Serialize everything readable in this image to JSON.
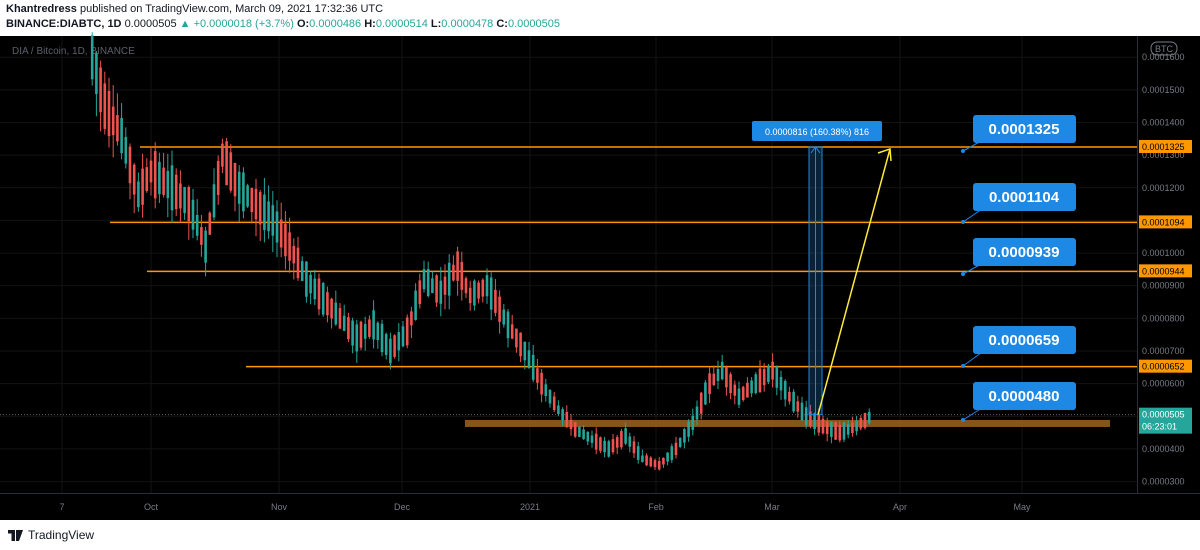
{
  "header": {
    "author": "Khantredress",
    "published_text": "published on TradingView.com, March 09, 2021 17:32:36 UTC",
    "symbol": "BINANCE:DIABTC, 1D",
    "last": "0.0000505",
    "change": "▲ +0.0000018 (+3.7%)",
    "o_label": "O:",
    "o_value": "0.0000486",
    "h_label": "H:",
    "h_value": "0.0000514",
    "l_label": "L:",
    "l_value": "0.0000478",
    "c_label": "C:",
    "c_value": "0.0000505"
  },
  "footer": {
    "brand": "TradingView"
  },
  "chart_data": {
    "type": "candlestick",
    "title": "DIA / Bitcoin, 1D, BINANCE",
    "currency_badge": "BTC",
    "y_range": [
      2.65e-05,
      0.0001665
    ],
    "y_ticks": [
      "0.0001600",
      "0.0001500",
      "0.0001400",
      "0.0001300",
      "0.0001200",
      "0.0001100",
      "0.0001000",
      "0.0000900",
      "0.0000800",
      "0.0000700",
      "0.0000600",
      "0.0000500",
      "0.0000400",
      "0.0000300"
    ],
    "x_ticks": [
      "7",
      "Oct",
      "Nov",
      "Dec",
      "2021",
      "Feb",
      "Mar",
      "Apr",
      "May"
    ],
    "last_price_label": "0.0000505",
    "countdown_label": "06:23:01",
    "horizontal_levels": [
      "0.0001325",
      "0.0001094",
      "0.0000944",
      "0.0000652"
    ],
    "support_zone": "0.0000478",
    "target_labels": [
      "0.0001325",
      "0.0001104",
      "0.0000939",
      "0.0000659",
      "0.0000480"
    ],
    "measure_label": "0.0000816 (160.38%) 816",
    "price_path": [
      [
        "Sep 17",
        0.00016
      ],
      [
        "Sep 20",
        0.000145
      ],
      [
        "Sep 24",
        0.000136
      ],
      [
        "Sep 28",
        0.000118
      ],
      [
        "Oct 1",
        0.000125
      ],
      [
        "Oct 6",
        0.00012
      ],
      [
        "Oct 10",
        0.000115
      ],
      [
        "Oct 14",
        0.000102
      ],
      [
        "Oct 18",
        0.00013
      ],
      [
        "Oct 22",
        0.00012
      ],
      [
        "Oct 26",
        0.000115
      ],
      [
        "Oct 30",
        0.00011
      ],
      [
        "Nov 3",
        0.000102
      ],
      [
        "Nov 7",
        9.2e-05
      ],
      [
        "Nov 11",
        8.6e-05
      ],
      [
        "Nov 15",
        8e-05
      ],
      [
        "Nov 19",
        7.4e-05
      ],
      [
        "Nov 23",
        7.8e-05
      ],
      [
        "Nov 27",
        7e-05
      ],
      [
        "Dec 1",
        7.6e-05
      ],
      [
        "Dec 5",
        9.2e-05
      ],
      [
        "Dec 9",
        8.8e-05
      ],
      [
        "Dec 13",
        9.6e-05
      ],
      [
        "Dec 16",
        8.7e-05
      ],
      [
        "Dec 20",
        9e-05
      ],
      [
        "Dec 25",
        7.8e-05
      ],
      [
        "Dec 29",
        7e-05
      ],
      [
        "Jan 2",
        6e-05
      ],
      [
        "Jan 6",
        5.2e-05
      ],
      [
        "Jan 10",
        4.6e-05
      ],
      [
        "Jan 14",
        4.3e-05
      ],
      [
        "Jan 18",
        4e-05
      ],
      [
        "Jan 22",
        4.4e-05
      ],
      [
        "Jan 26",
        3.7e-05
      ],
      [
        "Jan 30",
        3.5e-05
      ],
      [
        "Feb 3",
        4e-05
      ],
      [
        "Feb 7",
        4.8e-05
      ],
      [
        "Feb 11",
        6e-05
      ],
      [
        "Feb 14",
        6.4e-05
      ],
      [
        "Feb 18",
        5.6e-05
      ],
      [
        "Feb 22",
        6e-05
      ],
      [
        "Feb 26",
        6.4e-05
      ],
      [
        "Mar 2",
        5.6e-05
      ],
      [
        "Mar 6",
        5e-05
      ],
      [
        "Mar 10",
        4.7e-05
      ],
      [
        "Mar 14",
        4.5e-05
      ],
      [
        "Mar 18",
        4.7e-05
      ],
      [
        "Mar 22",
        5.05e-05
      ]
    ],
    "colors": {
      "background": "#000000",
      "up": "#26a69a",
      "down": "#ef5350",
      "level": "#ff9800",
      "zone": "#8d5a1e",
      "label_bg": "#1e88e5",
      "projection": "#ffeb3b"
    }
  }
}
